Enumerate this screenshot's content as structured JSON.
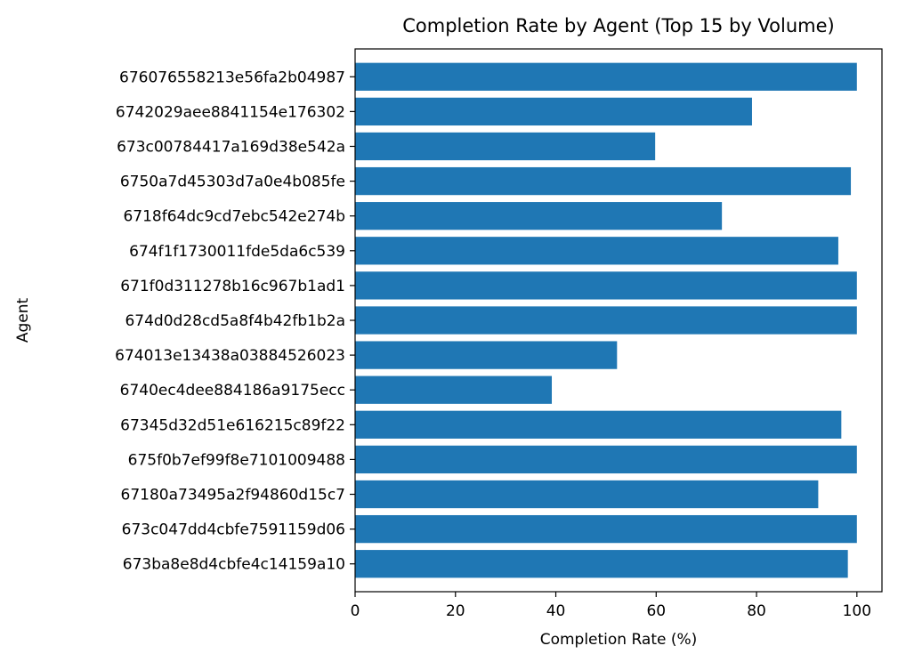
{
  "chart_data": {
    "type": "bar",
    "orientation": "horizontal",
    "title": "Completion Rate by Agent (Top 15 by Volume)",
    "xlabel": "Completion Rate (%)",
    "ylabel": "Agent",
    "xlim": [
      0,
      105
    ],
    "xticks": [
      0,
      20,
      40,
      60,
      80,
      100
    ],
    "grid": false,
    "bar_color": "#1f77b4",
    "categories": [
      "676076558213e56fa2b04987",
      "6742029aee8841154e176302",
      "673c00784417a169d38e542a",
      "6750a7d45303d7a0e4b085fe",
      "6718f64dc9cd7ebc542e274b",
      "674f1f1730011fde5da6c539",
      "671f0d311278b16c967b1ad1",
      "674d0d28cd5a8f4b42fb1b2a",
      "674013e13438a03884526023",
      "6740ec4dee884186a9175ecc",
      "67345d32d51e616215c89f22",
      "675f0b7ef99f8e7101009488",
      "67180a73495a2f94860d15c7",
      "673c047dd4cbfe7591159d06",
      "673ba8e8d4cbfe4c14159a10"
    ],
    "values": [
      100,
      79.1,
      59.8,
      98.8,
      73.1,
      96.3,
      100,
      100,
      52.2,
      39.2,
      96.9,
      100,
      92.3,
      100,
      98.2
    ]
  }
}
